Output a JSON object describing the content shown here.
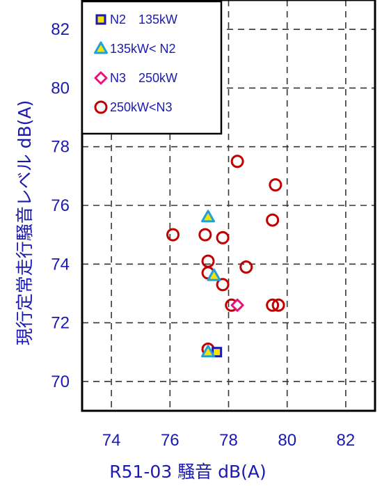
{
  "chart_data": {
    "type": "scatter",
    "xlabel": "R51-03 騒音 dB(A)",
    "ylabel": "現行定常走行騒音レベル dB(A)",
    "xlim": [
      73,
      83
    ],
    "ylim": [
      69,
      83
    ],
    "x_ticks": [
      74,
      76,
      78,
      80,
      82
    ],
    "y_ticks": [
      70,
      72,
      74,
      76,
      78,
      80,
      82
    ],
    "grid": true,
    "legend_position": "top-left",
    "series": [
      {
        "name": "N2　135kW",
        "marker": "square",
        "color": "#1a1ab0",
        "fill": "#f5e400",
        "points": [
          [
            77.6,
            71.0
          ]
        ]
      },
      {
        "name": "135kW< N2",
        "marker": "triangle",
        "color": "#1f9fdb",
        "fill": "#f5e400",
        "points": [
          [
            77.3,
            75.6
          ],
          [
            77.5,
            73.6
          ],
          [
            77.3,
            71.0
          ]
        ]
      },
      {
        "name": "N3　250kW",
        "marker": "diamond",
        "color": "#e8127c",
        "fill": "#ffffff",
        "points": [
          [
            78.3,
            72.6
          ]
        ]
      },
      {
        "name": "250kW<N3",
        "marker": "circle",
        "color": "#c00000",
        "fill": "none",
        "points": [
          [
            78.3,
            77.5
          ],
          [
            79.6,
            76.7
          ],
          [
            79.5,
            75.5
          ],
          [
            76.1,
            75.0
          ],
          [
            77.2,
            75.0
          ],
          [
            77.8,
            74.9
          ],
          [
            77.3,
            74.1
          ],
          [
            78.6,
            73.9
          ],
          [
            77.3,
            73.7
          ],
          [
            77.8,
            73.3
          ],
          [
            78.1,
            72.6
          ],
          [
            79.5,
            72.6
          ],
          [
            79.7,
            72.6
          ],
          [
            77.3,
            71.1
          ]
        ]
      }
    ]
  }
}
